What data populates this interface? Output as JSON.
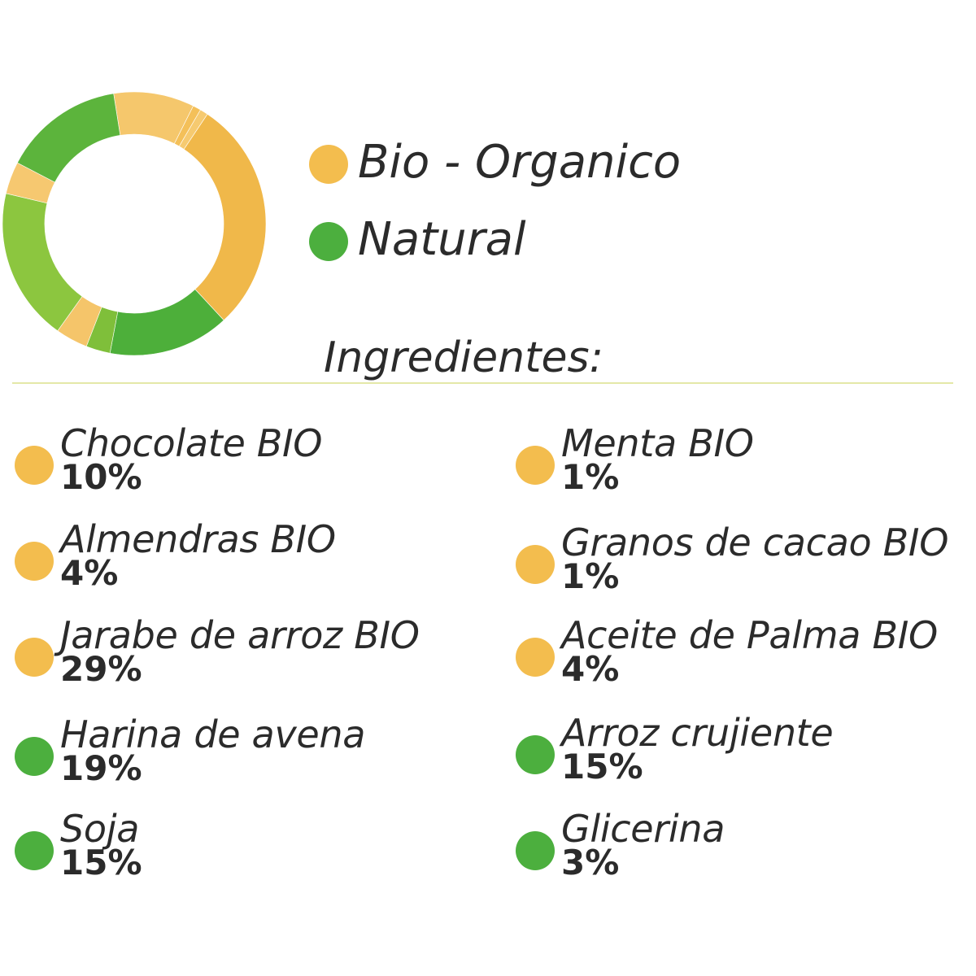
{
  "colors": {
    "bio": "#f3bd4e",
    "natural": "#4caf3e"
  },
  "legend": {
    "bio_label": "Bio - Organico",
    "natural_label": "Natural"
  },
  "heading": "Ingredientes:",
  "chart_data": {
    "type": "pie",
    "donut": true,
    "title": "",
    "slices": [
      {
        "label": "Chocolate BIO",
        "value": 10,
        "group": "bio",
        "color": "#f5c76c"
      },
      {
        "label": "Menta BIO",
        "value": 1,
        "group": "bio",
        "color": "#f4c059"
      },
      {
        "label": "Granos de cacao BIO",
        "value": 1,
        "group": "bio",
        "color": "#f6ca70"
      },
      {
        "label": "Jarabe de arroz BIO",
        "value": 29,
        "group": "bio",
        "color": "#f0b84a"
      },
      {
        "label": "Arroz crujiente",
        "value": 15,
        "group": "natural",
        "color": "#4daf3a"
      },
      {
        "label": "Glicerina",
        "value": 3,
        "group": "natural",
        "color": "#7fbf3a"
      },
      {
        "label": "Aceite de Palma BIO",
        "value": 4,
        "group": "bio",
        "color": "#f5c56a"
      },
      {
        "label": "Harina de avena",
        "value": 19,
        "group": "natural",
        "color": "#8cc63f"
      },
      {
        "label": "Almendras BIO",
        "value": 4,
        "group": "bio",
        "color": "#f6c870"
      },
      {
        "label": "Soja",
        "value": 15,
        "group": "natural",
        "color": "#5cb43c"
      }
    ]
  },
  "ingredients": {
    "left": [
      {
        "name": "Chocolate BIO",
        "pct": "10%",
        "group": "bio"
      },
      {
        "name": "Almendras BIO",
        "pct": "4%",
        "group": "bio"
      },
      {
        "name": "Jarabe de arroz BIO",
        "pct": "29%",
        "group": "bio"
      },
      {
        "name": "Harina de avena",
        "pct": "19%",
        "group": "natural"
      },
      {
        "name": "Soja",
        "pct": "15%",
        "group": "natural"
      }
    ],
    "right": [
      {
        "name": "Menta BIO",
        "pct": "1%",
        "group": "bio"
      },
      {
        "name": "Granos de cacao BIO",
        "pct": "1%",
        "group": "bio"
      },
      {
        "name": "Aceite de Palma BIO",
        "pct": "4%",
        "group": "bio"
      },
      {
        "name": "Arroz crujiente",
        "pct": "15%",
        "group": "natural"
      },
      {
        "name": "Glicerina",
        "pct": "3%",
        "group": "natural"
      }
    ]
  }
}
